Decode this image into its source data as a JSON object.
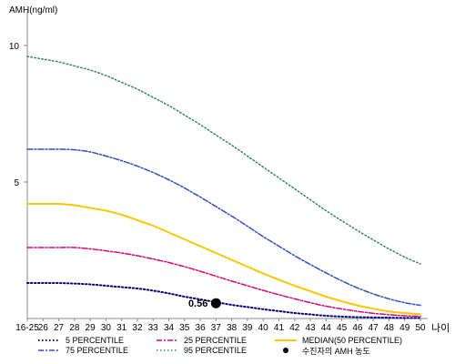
{
  "chart_data": {
    "type": "line",
    "ylabel": "AMH(ng/ml)",
    "xlabel": "나이",
    "ylim": [
      0,
      11
    ],
    "yticks": [
      5,
      10
    ],
    "x": [
      "16-25",
      "26",
      "27",
      "28",
      "29",
      "30",
      "31",
      "32",
      "33",
      "34",
      "35",
      "36",
      "37",
      "38",
      "39",
      "40",
      "41",
      "42",
      "43",
      "44",
      "45",
      "46",
      "47",
      "48",
      "49",
      "50"
    ],
    "series": [
      {
        "name": "5 PERCENTILE",
        "color": "#000080",
        "dash": "1.5 2.5",
        "width": 2,
        "values": [
          1.3,
          1.3,
          1.3,
          1.28,
          1.25,
          1.2,
          1.15,
          1.1,
          1.02,
          0.92,
          0.8,
          0.7,
          0.6,
          0.5,
          0.42,
          0.34,
          0.27,
          0.2,
          0.15,
          0.1,
          0.07,
          0.05,
          0.04,
          0.03,
          0.02,
          0.02
        ]
      },
      {
        "name": "25 PERCENTILE",
        "color": "#e0007a",
        "dash": "6 2 2 2",
        "width": 1.5,
        "values": [
          2.6,
          2.6,
          2.6,
          2.6,
          2.55,
          2.48,
          2.4,
          2.3,
          2.18,
          2.05,
          1.9,
          1.73,
          1.55,
          1.37,
          1.2,
          1.03,
          0.87,
          0.72,
          0.58,
          0.45,
          0.35,
          0.26,
          0.19,
          0.14,
          0.1,
          0.08
        ]
      },
      {
        "name": "MEDIAN(50 PERCENTILE)",
        "color": "#f5c800",
        "dash": "",
        "width": 2,
        "values": [
          4.2,
          4.2,
          4.2,
          4.15,
          4.05,
          3.95,
          3.8,
          3.6,
          3.4,
          3.15,
          2.9,
          2.65,
          2.4,
          2.15,
          1.9,
          1.65,
          1.42,
          1.2,
          1.0,
          0.8,
          0.63,
          0.48,
          0.36,
          0.26,
          0.2,
          0.16
        ]
      },
      {
        "name": "75 PERCENTILE",
        "color": "#3050c0",
        "dash": "6 2 2 2",
        "width": 1.5,
        "values": [
          6.2,
          6.2,
          6.2,
          6.18,
          6.1,
          5.95,
          5.78,
          5.58,
          5.35,
          5.08,
          4.78,
          4.45,
          4.1,
          3.75,
          3.38,
          3.0,
          2.65,
          2.3,
          1.98,
          1.67,
          1.38,
          1.12,
          0.9,
          0.72,
          0.58,
          0.48
        ]
      },
      {
        "name": "95 PERCENTILE",
        "color": "#2e8b57",
        "dash": "1.5 2.5",
        "width": 1.5,
        "values": [
          9.6,
          9.5,
          9.4,
          9.25,
          9.1,
          8.9,
          8.65,
          8.4,
          8.1,
          7.8,
          7.45,
          7.1,
          6.72,
          6.35,
          5.95,
          5.55,
          5.15,
          4.75,
          4.35,
          3.95,
          3.58,
          3.22,
          2.88,
          2.55,
          2.25,
          2.0
        ]
      }
    ],
    "marker": {
      "name": "수진자의 AMH 농도",
      "x": "37",
      "value": 0.56,
      "label": "0.56"
    },
    "legend_position": "bottom"
  }
}
